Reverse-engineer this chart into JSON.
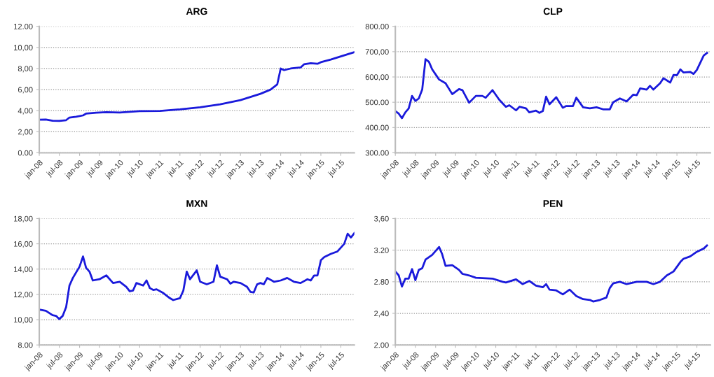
{
  "chart_data": [
    {
      "type": "line",
      "title": "ARG",
      "grid": "y",
      "line_style": "solid",
      "xlim": [
        "2008-01",
        "2015-11"
      ],
      "ylim": [
        0,
        12
      ],
      "yticks": [
        {
          "value": 0,
          "label": "0.00"
        },
        {
          "value": 2,
          "label": "2,00"
        },
        {
          "value": 4,
          "label": "4,00"
        },
        {
          "value": 6,
          "label": "6,00"
        },
        {
          "value": 8,
          "label": "8,00"
        },
        {
          "value": 10,
          "label": "10,00"
        },
        {
          "value": 12,
          "label": "12.00"
        }
      ],
      "xticks": [
        {
          "value": "2008-01",
          "label": "jan-08"
        },
        {
          "value": "2008-07",
          "label": "jul-08"
        },
        {
          "value": "2009-01",
          "label": "jan-09"
        },
        {
          "value": "2009-07",
          "label": "jul-09"
        },
        {
          "value": "2010-01",
          "label": "jan-10"
        },
        {
          "value": "2010-07",
          "label": "jul-10"
        },
        {
          "value": "2011-01",
          "label": "jan-11"
        },
        {
          "value": "2011-07",
          "label": "jul-11"
        },
        {
          "value": "2012-01",
          "label": "jan-12"
        },
        {
          "value": "2012-07",
          "label": "jul-12"
        },
        {
          "value": "2013-01",
          "label": "jan-13"
        },
        {
          "value": "2013-07",
          "label": "jul-13"
        },
        {
          "value": "2014-01",
          "label": "jan-14"
        },
        {
          "value": "2014-07",
          "label": "jul-14"
        },
        {
          "value": "2015-01",
          "label": "jan-15"
        },
        {
          "value": "2015-07",
          "label": "jul-15"
        }
      ],
      "x": [
        "2008-01",
        "2008-03",
        "2008-05",
        "2008-07",
        "2008-09",
        "2008-10",
        "2008-12",
        "2009-02",
        "2009-03",
        "2009-06",
        "2009-09",
        "2010-01",
        "2010-07",
        "2011-01",
        "2011-07",
        "2012-01",
        "2012-07",
        "2013-01",
        "2013-07",
        "2013-10",
        "2013-12",
        "2014-01",
        "2014-02",
        "2014-04",
        "2014-07",
        "2014-08",
        "2014-10",
        "2014-12",
        "2015-01",
        "2015-04",
        "2015-07",
        "2015-11"
      ],
      "series": [
        {
          "color": "#1a1adb",
          "values": [
            3.15,
            3.16,
            3.05,
            3.02,
            3.1,
            3.35,
            3.42,
            3.55,
            3.72,
            3.8,
            3.85,
            3.82,
            3.95,
            3.98,
            4.12,
            4.32,
            4.6,
            5.0,
            5.6,
            6.0,
            6.5,
            8.0,
            7.85,
            8.0,
            8.1,
            8.4,
            8.5,
            8.45,
            8.6,
            8.85,
            9.15,
            9.55
          ]
        }
      ]
    },
    {
      "type": "line",
      "title": "CLP",
      "grid": "y",
      "line_style": "solid",
      "xlim": [
        "2008-01",
        "2015-11"
      ],
      "ylim": [
        300,
        800
      ],
      "yticks": [
        {
          "value": 300,
          "label": "300.00"
        },
        {
          "value": 400,
          "label": "400.00"
        },
        {
          "value": 500,
          "label": "500.00"
        },
        {
          "value": 600,
          "label": "600,00"
        },
        {
          "value": 700,
          "label": "700,00"
        },
        {
          "value": 800,
          "label": "800.00"
        }
      ],
      "xticks": [
        {
          "value": "2008-01",
          "label": "jan-08"
        },
        {
          "value": "2008-07",
          "label": "jul-08"
        },
        {
          "value": "2009-01",
          "label": "jan-09"
        },
        {
          "value": "2009-07",
          "label": "jul-09"
        },
        {
          "value": "2010-01",
          "label": "jan-10"
        },
        {
          "value": "2010-07",
          "label": "jul-10"
        },
        {
          "value": "2011-01",
          "label": "jan-11"
        },
        {
          "value": "2011-07",
          "label": "jul-11"
        },
        {
          "value": "2012-01",
          "label": "jan-12"
        },
        {
          "value": "2012-07",
          "label": "jul-12"
        },
        {
          "value": "2013-01",
          "label": "jan-13"
        },
        {
          "value": "2013-07",
          "label": "jul-13"
        },
        {
          "value": "2014-01",
          "label": "jan-14"
        },
        {
          "value": "2014-07",
          "label": "jul-14"
        },
        {
          "value": "2015-01",
          "label": "jan-15"
        },
        {
          "value": "2015-07",
          "label": "jul-15"
        }
      ],
      "x": [
        "2008-01",
        "2008-02",
        "2008-03",
        "2008-04",
        "2008-05",
        "2008-06",
        "2008-07",
        "2008-08",
        "2008-09",
        "2008-10",
        "2008-11",
        "2008-12",
        "2009-02",
        "2009-04",
        "2009-06",
        "2009-08",
        "2009-09",
        "2009-11",
        "2010-01",
        "2010-03",
        "2010-04",
        "2010-06",
        "2010-08",
        "2010-10",
        "2010-11",
        "2011-01",
        "2011-02",
        "2011-04",
        "2011-05",
        "2011-07",
        "2011-08",
        "2011-09",
        "2011-10",
        "2011-11",
        "2012-01",
        "2012-03",
        "2012-04",
        "2012-06",
        "2012-07",
        "2012-09",
        "2012-11",
        "2013-01",
        "2013-03",
        "2013-05",
        "2013-06",
        "2013-08",
        "2013-10",
        "2013-12",
        "2014-01",
        "2014-02",
        "2014-04",
        "2014-05",
        "2014-06",
        "2014-08",
        "2014-09",
        "2014-11",
        "2014-12",
        "2015-01",
        "2015-02",
        "2015-03",
        "2015-05",
        "2015-06",
        "2015-07",
        "2015-09",
        "2015-10"
      ],
      "series": [
        {
          "color": "#1a1adb",
          "values": [
            465,
            455,
            437,
            460,
            475,
            525,
            505,
            515,
            550,
            670,
            660,
            630,
            590,
            575,
            532,
            552,
            548,
            498,
            525,
            525,
            518,
            548,
            510,
            482,
            488,
            468,
            482,
            476,
            460,
            467,
            458,
            465,
            522,
            492,
            520,
            478,
            485,
            485,
            518,
            480,
            476,
            480,
            472,
            472,
            500,
            515,
            503,
            530,
            528,
            555,
            550,
            565,
            550,
            575,
            595,
            578,
            608,
            607,
            630,
            618,
            620,
            612,
            628,
            685,
            695
          ]
        }
      ]
    },
    {
      "type": "line",
      "title": "MXN",
      "grid": "y",
      "line_style": "solid",
      "xlim": [
        "2008-01",
        "2015-11"
      ],
      "ylim": [
        8,
        18
      ],
      "yticks": [
        {
          "value": 8,
          "label": "8.00"
        },
        {
          "value": 10,
          "label": "10,00"
        },
        {
          "value": 12,
          "label": "12,00"
        },
        {
          "value": 14,
          "label": "14,00"
        },
        {
          "value": 16,
          "label": "16,00"
        },
        {
          "value": 18,
          "label": "18,00"
        }
      ],
      "xticks": [
        {
          "value": "2008-01",
          "label": "jan-08"
        },
        {
          "value": "2008-07",
          "label": "jul-08"
        },
        {
          "value": "2009-01",
          "label": "jan-09"
        },
        {
          "value": "2009-07",
          "label": "jul-09"
        },
        {
          "value": "2010-01",
          "label": "jan-10"
        },
        {
          "value": "2010-07",
          "label": "jul-10"
        },
        {
          "value": "2011-01",
          "label": "jan-11"
        },
        {
          "value": "2011-07",
          "label": "jul-11"
        },
        {
          "value": "2012-01",
          "label": "jan-12"
        },
        {
          "value": "2012-07",
          "label": "jul-12"
        },
        {
          "value": "2013-01",
          "label": "jan-13"
        },
        {
          "value": "2013-07",
          "label": "jul-13"
        },
        {
          "value": "2014-01",
          "label": "jan-14"
        },
        {
          "value": "2014-07",
          "label": "jul-14"
        },
        {
          "value": "2015-01",
          "label": "jan-15"
        },
        {
          "value": "2015-07",
          "label": "jul-15"
        }
      ],
      "x": [
        "2008-01",
        "2008-03",
        "2008-05",
        "2008-06",
        "2008-07",
        "2008-08",
        "2008-09",
        "2008-10",
        "2008-11",
        "2009-01",
        "2009-02",
        "2009-03",
        "2009-04",
        "2009-05",
        "2009-07",
        "2009-09",
        "2009-11",
        "2010-01",
        "2010-03",
        "2010-04",
        "2010-05",
        "2010-06",
        "2010-08",
        "2010-09",
        "2010-10",
        "2010-11",
        "2010-12",
        "2011-02",
        "2011-04",
        "2011-05",
        "2011-07",
        "2011-08",
        "2011-09",
        "2011-10",
        "2011-12",
        "2012-01",
        "2012-03",
        "2012-05",
        "2012-06",
        "2012-07",
        "2012-09",
        "2012-10",
        "2012-11",
        "2013-01",
        "2013-03",
        "2013-04",
        "2013-05",
        "2013-06",
        "2013-07",
        "2013-08",
        "2013-09",
        "2013-11",
        "2014-01",
        "2014-03",
        "2014-05",
        "2014-07",
        "2014-09",
        "2014-10",
        "2014-11",
        "2014-12",
        "2015-01",
        "2015-02",
        "2015-04",
        "2015-06",
        "2015-08",
        "2015-09",
        "2015-10",
        "2015-11"
      ],
      "series": [
        {
          "color": "#1a1adb",
          "values": [
            10.8,
            10.7,
            10.35,
            10.3,
            10.05,
            10.3,
            11.0,
            12.7,
            13.3,
            14.2,
            15.0,
            14.1,
            13.8,
            13.1,
            13.2,
            13.5,
            12.9,
            13.0,
            12.6,
            12.25,
            12.3,
            12.9,
            12.7,
            13.1,
            12.5,
            12.35,
            12.4,
            12.1,
            11.7,
            11.55,
            11.7,
            12.3,
            13.8,
            13.2,
            13.9,
            13.0,
            12.8,
            13.0,
            14.3,
            13.4,
            13.2,
            12.85,
            13.0,
            12.9,
            12.6,
            12.2,
            12.15,
            12.8,
            12.9,
            12.8,
            13.3,
            13.0,
            13.1,
            13.3,
            13.0,
            12.9,
            13.2,
            13.1,
            13.5,
            13.5,
            14.7,
            14.95,
            15.2,
            15.4,
            16.0,
            16.8,
            16.5,
            16.85
          ]
        }
      ]
    },
    {
      "type": "line",
      "title": "PEN",
      "grid": "y",
      "line_style": "solid",
      "xlim": [
        "2008-01",
        "2015-11"
      ],
      "ylim": [
        2.0,
        3.6
      ],
      "yticks": [
        {
          "value": 2.0,
          "label": "2.00"
        },
        {
          "value": 2.4,
          "label": "2,40"
        },
        {
          "value": 2.8,
          "label": "2.80"
        },
        {
          "value": 3.2,
          "label": "3.20"
        },
        {
          "value": 3.6,
          "label": "3,60"
        }
      ],
      "xticks": [
        {
          "value": "2008-01",
          "label": "jan-08"
        },
        {
          "value": "2008-07",
          "label": "jul-08"
        },
        {
          "value": "2009-01",
          "label": "jan-09"
        },
        {
          "value": "2009-07",
          "label": "jul-09"
        },
        {
          "value": "2010-01",
          "label": "jan-10"
        },
        {
          "value": "2010-07",
          "label": "jul-10"
        },
        {
          "value": "2011-01",
          "label": "jan-11"
        },
        {
          "value": "2011-07",
          "label": "jul-11"
        },
        {
          "value": "2012-01",
          "label": "jan-12"
        },
        {
          "value": "2012-07",
          "label": "jul-12"
        },
        {
          "value": "2013-01",
          "label": "jan-13"
        },
        {
          "value": "2013-07",
          "label": "jul-13"
        },
        {
          "value": "2014-01",
          "label": "jan-14"
        },
        {
          "value": "2014-07",
          "label": "jul-14"
        },
        {
          "value": "2015-01",
          "label": "jan-15"
        },
        {
          "value": "2015-07",
          "label": "jul-15"
        }
      ],
      "x": [
        "2008-01",
        "2008-02",
        "2008-03",
        "2008-04",
        "2008-05",
        "2008-06",
        "2008-07",
        "2008-08",
        "2008-09",
        "2008-10",
        "2008-12",
        "2009-02",
        "2009-03",
        "2009-04",
        "2009-06",
        "2009-08",
        "2009-09",
        "2009-11",
        "2010-01",
        "2010-06",
        "2010-09",
        "2010-10",
        "2011-01",
        "2011-03",
        "2011-05",
        "2011-07",
        "2011-09",
        "2011-10",
        "2011-11",
        "2012-01",
        "2012-03",
        "2012-05",
        "2012-07",
        "2012-09",
        "2012-11",
        "2012-12",
        "2013-02",
        "2013-04",
        "2013-05",
        "2013-06",
        "2013-08",
        "2013-10",
        "2014-01",
        "2014-04",
        "2014-06",
        "2014-08",
        "2014-10",
        "2014-12",
        "2015-02",
        "2015-03",
        "2015-05",
        "2015-07",
        "2015-09",
        "2015-10"
      ],
      "series": [
        {
          "color": "#1a1adb",
          "values": [
            2.93,
            2.88,
            2.74,
            2.84,
            2.84,
            2.96,
            2.82,
            2.95,
            2.97,
            3.08,
            3.14,
            3.24,
            3.15,
            3.0,
            3.01,
            2.95,
            2.9,
            2.88,
            2.85,
            2.84,
            2.8,
            2.79,
            2.83,
            2.77,
            2.81,
            2.75,
            2.73,
            2.77,
            2.7,
            2.69,
            2.64,
            2.7,
            2.62,
            2.58,
            2.57,
            2.55,
            2.57,
            2.6,
            2.72,
            2.78,
            2.8,
            2.77,
            2.8,
            2.8,
            2.77,
            2.8,
            2.88,
            2.93,
            3.05,
            3.09,
            3.12,
            3.18,
            3.22,
            3.26
          ]
        }
      ]
    }
  ]
}
